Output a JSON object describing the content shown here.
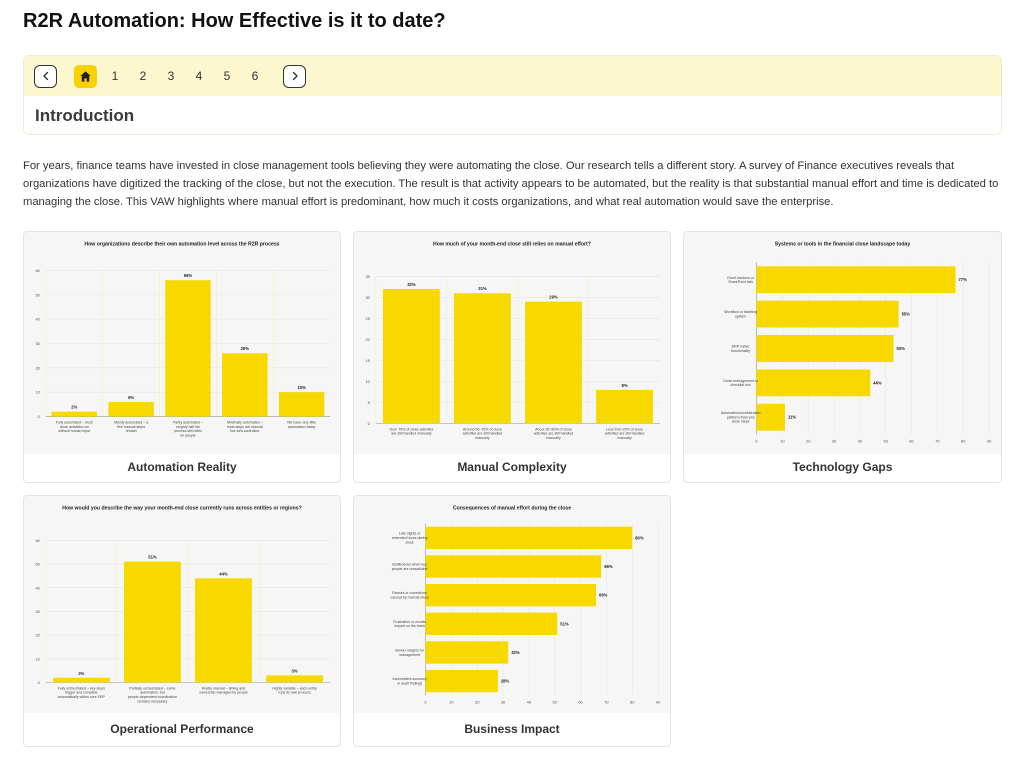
{
  "page": {
    "title": "R2R Automation: How Effective is it to date?"
  },
  "nav": {
    "pages": [
      "1",
      "2",
      "3",
      "4",
      "5",
      "6"
    ],
    "section_title": "Introduction"
  },
  "intro": {
    "text": "For years, finance teams have invested in close management tools believing they were automating the close. Our research tells a different story. A survey of Finance executives reveals that organizations have digitized the tracking of the close, but not the execution. The result is that activity appears to be automated, but the reality is that substantial manual effort and time is dedicated to managing the close. This VAW highlights where manual effort is predominant, how much it costs organizations, and what real automation would save the enterprise."
  },
  "colors": {
    "bar": "#f7d900",
    "accent": "#f7d100",
    "nav_bg": "#fdf7d0"
  },
  "cards": [
    {
      "label": "Automation Reality"
    },
    {
      "label": "Manual Complexity"
    },
    {
      "label": "Technology Gaps"
    },
    {
      "label": "Operational Performance"
    },
    {
      "label": "Business Impact"
    }
  ],
  "chart_data": [
    {
      "type": "bar",
      "title": "How organizations describe their own automation level across the R2R process",
      "categories": [
        "Fully automated – most close activities run without human input",
        "Mostly automated – a few manual steps remain",
        "Partly automated – roughly half the process still relies on people",
        "Minimally automated – most steps are manual but well-controlled",
        "We have very little automation today"
      ],
      "values": [
        2,
        6,
        56,
        26,
        10
      ],
      "labels": [
        "2%",
        "6%",
        "56%",
        "26%",
        "10%"
      ],
      "ylim": [
        0,
        60
      ],
      "yticks": [
        0,
        10,
        20,
        30,
        40,
        50,
        60
      ]
    },
    {
      "type": "bar",
      "title": "How much of your month-end close still relies on manual effort?",
      "categories": [
        "Over 75% of close activities are still handled manually",
        "Around 50–75% of close activities are still handled manually",
        "About 25–50% of close activities are still handled manually",
        "Less than 25% of close activities are still handled manually"
      ],
      "values": [
        32,
        31,
        29,
        8
      ],
      "labels": [
        "32%",
        "31%",
        "29%",
        "8%"
      ],
      "ylim": [
        0,
        35
      ],
      "yticks": [
        0,
        5,
        10,
        15,
        20,
        25,
        30,
        35
      ]
    },
    {
      "type": "bar",
      "orientation": "horizontal",
      "title": "Systems or tools in the financial close landscape today",
      "categories": [
        "Excel trackers or SharePoint lists",
        "Workflow or ticketing system",
        "ERP native functionality",
        "Close-management or checklist tool",
        "Automation/orchestration platform that runs close steps"
      ],
      "values": [
        77,
        55,
        53,
        44,
        11
      ],
      "labels": [
        "77%",
        "55%",
        "53%",
        "44%",
        "11%"
      ],
      "xlim": [
        0,
        90
      ],
      "xticks": [
        0,
        10,
        20,
        30,
        40,
        50,
        60,
        70,
        80,
        90
      ]
    },
    {
      "type": "bar",
      "title": "How would you describe the way your month-end close currently runs across entities or regions?",
      "categories": [
        "Fully orchestrated – key steps trigger and complete automatically within core ERP",
        "Partially orchestrated – some automation, but people-dependent coordination remains necessary",
        "Mostly manual – timing and ownership managed by people",
        "Highly variable – each entity runs its own process"
      ],
      "values": [
        2,
        51,
        44,
        3
      ],
      "labels": [
        "2%",
        "51%",
        "44%",
        "3%"
      ],
      "ylim": [
        0,
        60
      ],
      "yticks": [
        0,
        10,
        20,
        30,
        40,
        50,
        60
      ]
    },
    {
      "type": "bar",
      "orientation": "horizontal",
      "title": "Consequences of manual effort during the close",
      "categories": [
        "Late nights or extended hours during close",
        "Bottlenecks when key people are unavailable",
        "Rework or corrections caused by manual steps",
        "Frustration or morale impact on the team",
        "Slower insights for management",
        "Inconsistent accuracy or audit findings"
      ],
      "values": [
        80,
        68,
        66,
        51,
        32,
        28
      ],
      "labels": [
        "80%",
        "68%",
        "66%",
        "51%",
        "32%",
        "28%"
      ],
      "xlim": [
        0,
        90
      ],
      "xticks": [
        0,
        10,
        20,
        30,
        40,
        50,
        60,
        70,
        80,
        90
      ]
    }
  ]
}
